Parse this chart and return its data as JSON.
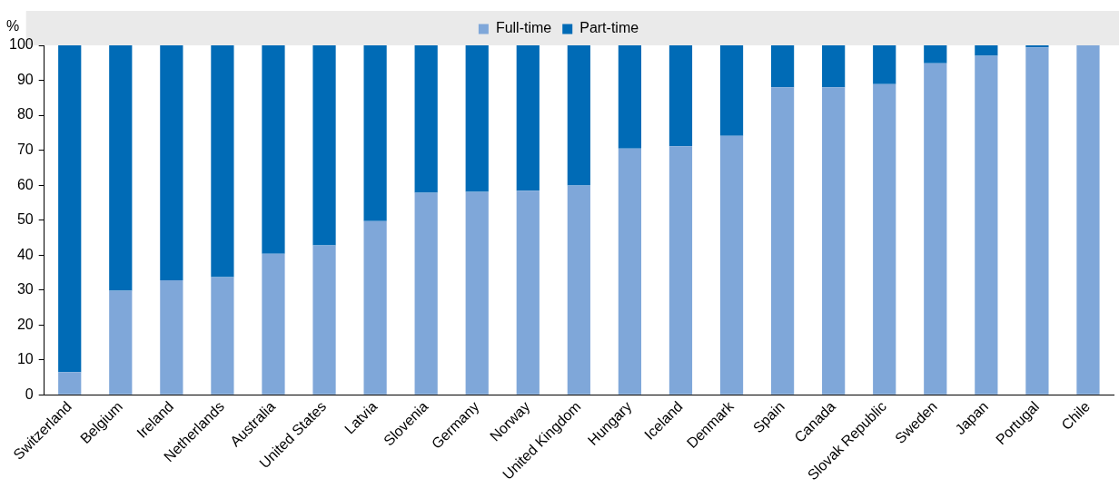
{
  "chart_data": {
    "type": "bar",
    "stacked": true,
    "ylabel": "%",
    "categories": [
      "Switzerland",
      "Belgium",
      "Ireland",
      "Netherlands",
      "Australia",
      "United States",
      "Latvia",
      "Slovenia",
      "Germany",
      "Norway",
      "United Kingdom",
      "Hungary",
      "Iceland",
      "Denmark",
      "Spain",
      "Canada",
      "Slovak Republic",
      "Sweden",
      "Japan",
      "Portugal",
      "Chile"
    ],
    "series": [
      {
        "name": "Full-time",
        "color": "#7fa7d9",
        "values": [
          6.5,
          29.8,
          32.8,
          33.7,
          40.4,
          42.8,
          49.7,
          57.8,
          58.1,
          58.4,
          59.9,
          70.5,
          71.1,
          74.1,
          88,
          88,
          88.9,
          94.9,
          97,
          99.4,
          100
        ]
      },
      {
        "name": "Part-time",
        "color": "#006bb6",
        "values": [
          93.5,
          70.2,
          67.2,
          66.3,
          59.6,
          57.2,
          50.3,
          42.2,
          41.9,
          41.6,
          40.1,
          29.5,
          28.9,
          25.9,
          12,
          12,
          11.1,
          5.1,
          3,
          0.6,
          0
        ]
      }
    ],
    "ylim": [
      0,
      100
    ],
    "yticks": [
      0,
      10,
      20,
      30,
      40,
      50,
      60,
      70,
      80,
      90,
      100
    ],
    "grid": false,
    "legend": "top"
  }
}
